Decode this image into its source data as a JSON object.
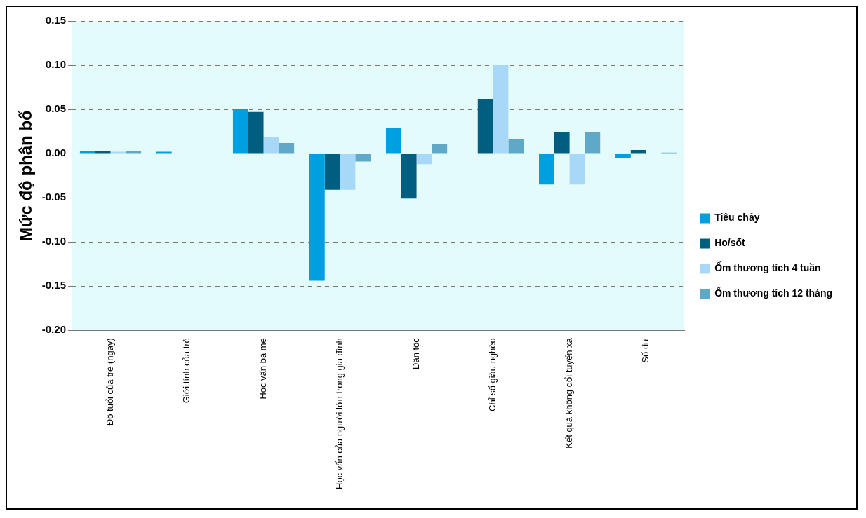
{
  "chart_data": {
    "type": "bar",
    "ylabel": "Mức độ phân bổ",
    "categories": [
      "Độ tuổi của trẻ (ngày)",
      "Giới tính của trẻ",
      "Học vấn bà mẹ",
      "Học vấn của người lớn trong gia đình",
      "Dân tộc",
      "Chỉ số giàu nghèo",
      "Kết quả không đổi tuyến xã",
      "Số dư"
    ],
    "series": [
      {
        "name": "Tiêu chảy",
        "color": "#00a0e0",
        "values": [
          0.003,
          0.002,
          0.05,
          -0.144,
          0.029,
          0,
          -0.035,
          -0.005
        ]
      },
      {
        "name": "Ho/sốt",
        "color": "#005f80",
        "values": [
          0.003,
          null,
          0.047,
          -0.041,
          -0.051,
          0.062,
          0.024,
          0.004
        ]
      },
      {
        "name": "Ốm thương tích 4 tuần",
        "color": "#a8d8f8",
        "values": [
          0.002,
          0,
          0.019,
          -0.041,
          -0.012,
          0.1,
          -0.035,
          null
        ]
      },
      {
        "name": "Ốm thương tích 12 tháng",
        "color": "#5fa8c8",
        "values": [
          0.003,
          0,
          0.012,
          -0.009,
          0.011,
          0.016,
          0.024,
          0.001
        ]
      }
    ],
    "ylim": [
      -0.2,
      0.15
    ],
    "yticks": [
      {
        "value": -0.2,
        "label": "-0.20"
      },
      {
        "value": -0.15,
        "label": "-0.15"
      },
      {
        "value": -0.1,
        "label": "-0.10"
      },
      {
        "value": -0.05,
        "label": "-0.05"
      },
      {
        "value": 0,
        "label": "0.00"
      },
      {
        "value": 0.05,
        "label": "0.05"
      },
      {
        "value": 0.1,
        "label": "0.10"
      },
      {
        "value": 0.15,
        "label": "0.15"
      }
    ],
    "grid": "y",
    "legend": "right"
  }
}
